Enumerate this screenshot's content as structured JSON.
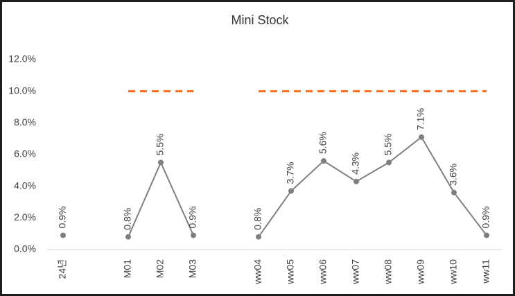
{
  "chart_data": {
    "type": "line",
    "title": "Mini Stock",
    "categories": [
      "24년",
      null,
      "M01",
      "M02",
      "M03",
      null,
      "ww04",
      "ww05",
      "ww06",
      "ww07",
      "ww08",
      "ww09",
      "ww10",
      "ww11"
    ],
    "series": [
      {
        "color": "#7f7f7f",
        "markers": true,
        "values": [
          0.9,
          null,
          0.8,
          5.5,
          0.9,
          null,
          0.8,
          3.7,
          5.6,
          4.3,
          5.5,
          7.1,
          3.6,
          0.9
        ],
        "value_labels": [
          "0.9%",
          null,
          "0.8%",
          "5.5%",
          "0.9%",
          null,
          "0.8%",
          "3.7%",
          "5.6%",
          "4.3%",
          "5.5%",
          "7.1%",
          "3.6%",
          "0.9%"
        ]
      },
      {
        "color": "#ff6a1a",
        "dashed": true,
        "markers": false,
        "values": [
          null,
          null,
          10,
          10,
          10,
          null,
          10,
          10,
          10,
          10,
          10,
          10,
          10,
          10
        ]
      }
    ],
    "ylim": [
      0,
      12
    ],
    "yticks": [
      {
        "value": 0,
        "label": "0.0%"
      },
      {
        "value": 2,
        "label": "2.0%"
      },
      {
        "value": 4,
        "label": "4.0%"
      },
      {
        "value": 6,
        "label": "6.0%"
      },
      {
        "value": 8,
        "label": "8.0%"
      },
      {
        "value": 10,
        "label": "10.0%"
      },
      {
        "value": 12,
        "label": "12.0%"
      }
    ],
    "grid": false
  }
}
